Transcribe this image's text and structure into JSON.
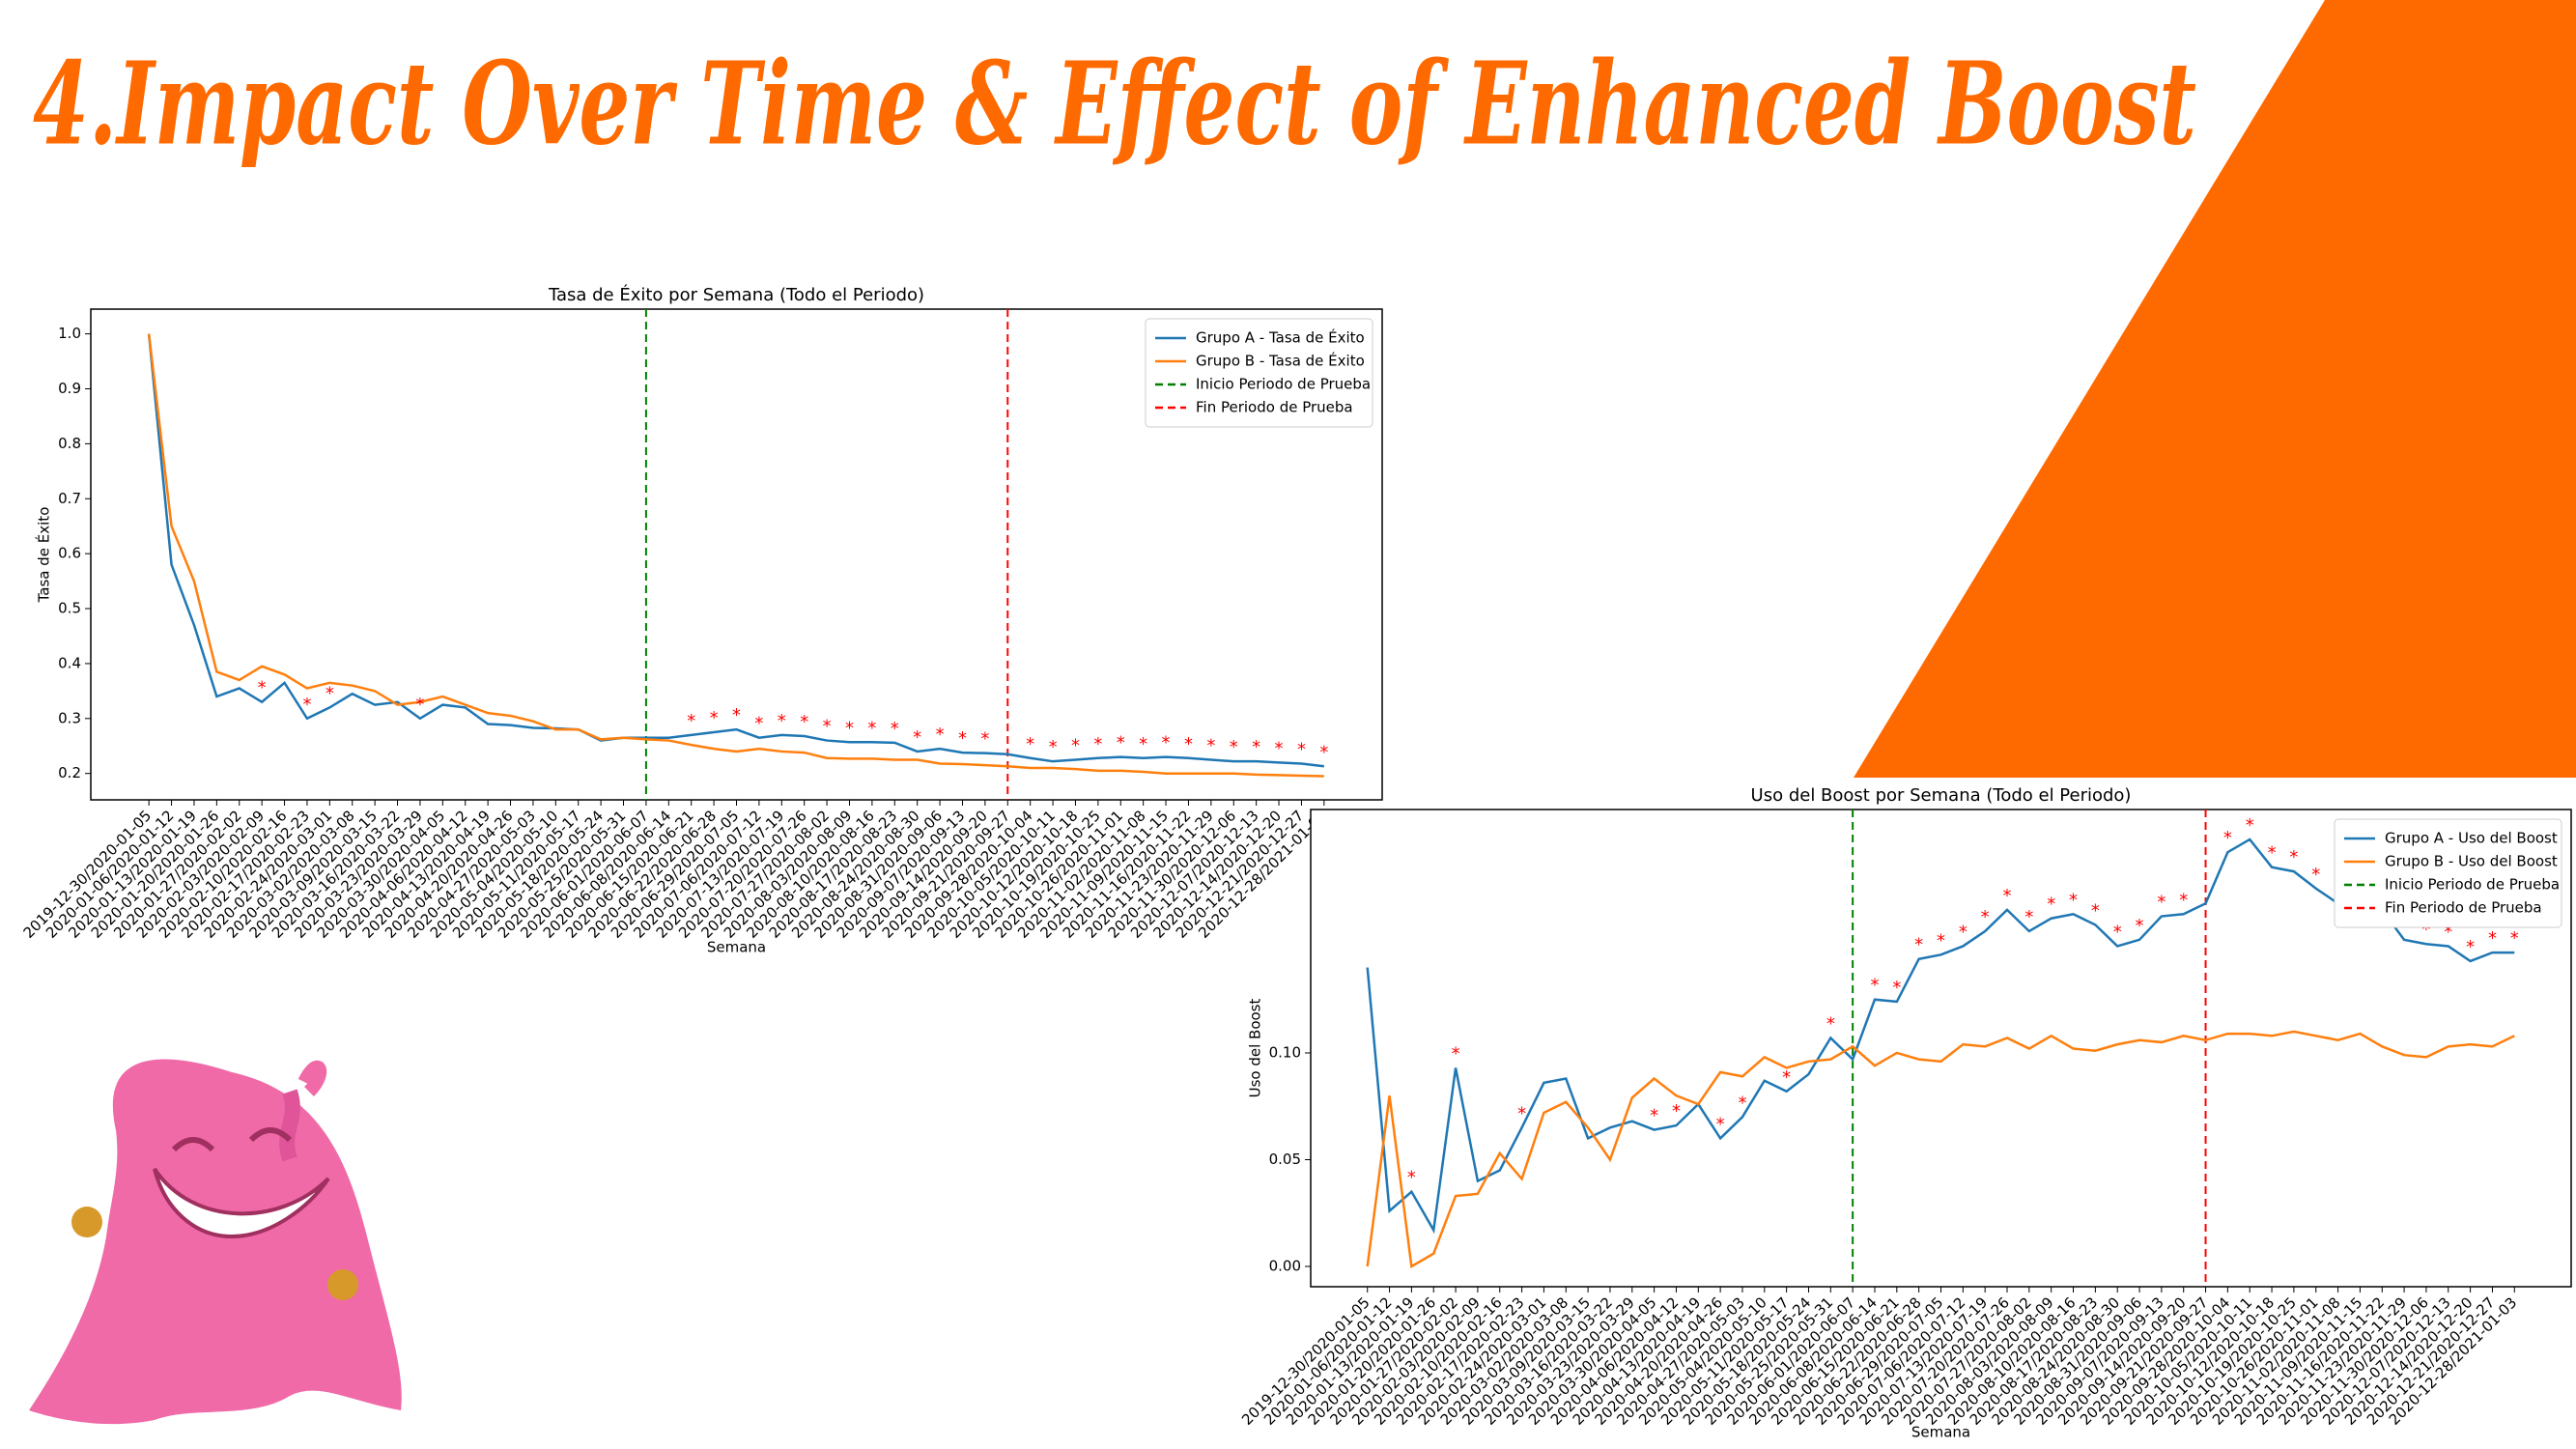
{
  "header": {
    "title": "4.Impact Over Time & Effect of Enhanced Boost"
  },
  "chart_data": [
    {
      "type": "line",
      "title": "Tasa de Éxito por Semana (Todo el Periodo)",
      "x_label": "Semana",
      "y_label": "Tasa de Éxito",
      "categories": [
        "2019-12-30/2020-01-05",
        "2020-01-06/2020-01-12",
        "2020-01-13/2020-01-19",
        "2020-01-20/2020-01-26",
        "2020-01-27/2020-02-02",
        "2020-02-03/2020-02-09",
        "2020-02-10/2020-02-16",
        "2020-02-17/2020-02-23",
        "2020-02-24/2020-03-01",
        "2020-03-02/2020-03-08",
        "2020-03-09/2020-03-15",
        "2020-03-16/2020-03-22",
        "2020-03-23/2020-03-29",
        "2020-03-30/2020-04-05",
        "2020-04-06/2020-04-12",
        "2020-04-13/2020-04-19",
        "2020-04-20/2020-04-26",
        "2020-04-27/2020-05-03",
        "2020-05-04/2020-05-10",
        "2020-05-11/2020-05-17",
        "2020-05-18/2020-05-24",
        "2020-05-25/2020-05-31",
        "2020-06-01/2020-06-07",
        "2020-06-08/2020-06-14",
        "2020-06-15/2020-06-21",
        "2020-06-22/2020-06-28",
        "2020-06-29/2020-07-05",
        "2020-07-06/2020-07-12",
        "2020-07-13/2020-07-19",
        "2020-07-20/2020-07-26",
        "2020-07-27/2020-08-02",
        "2020-08-03/2020-08-09",
        "2020-08-10/2020-08-16",
        "2020-08-17/2020-08-23",
        "2020-08-24/2020-08-30",
        "2020-08-31/2020-09-06",
        "2020-09-07/2020-09-13",
        "2020-09-14/2020-09-20",
        "2020-09-21/2020-09-27",
        "2020-09-28/2020-10-04",
        "2020-10-05/2020-10-11",
        "2020-10-12/2020-10-18",
        "2020-10-19/2020-10-25",
        "2020-10-26/2020-11-01",
        "2020-11-02/2020-11-08",
        "2020-11-09/2020-11-15",
        "2020-11-16/2020-11-22",
        "2020-11-23/2020-11-29",
        "2020-11-30/2020-12-06",
        "2020-12-07/2020-12-13",
        "2020-12-14/2020-12-20",
        "2020-12-21/2020-12-27",
        "2020-12-28/2021-01-03"
      ],
      "series": [
        {
          "name": "Grupo A - Tasa de Éxito",
          "color": "#1f77b4",
          "values": [
            1.0,
            0.58,
            0.47,
            0.34,
            0.355,
            0.33,
            0.365,
            0.3,
            0.32,
            0.345,
            0.325,
            0.33,
            0.3,
            0.325,
            0.32,
            0.29,
            0.288,
            0.283,
            0.282,
            0.28,
            0.26,
            0.265,
            0.265,
            0.265,
            0.27,
            0.275,
            0.28,
            0.265,
            0.27,
            0.268,
            0.26,
            0.257,
            0.257,
            0.256,
            0.24,
            0.245,
            0.238,
            0.237,
            0.235,
            0.228,
            0.222,
            0.225,
            0.228,
            0.23,
            0.228,
            0.23,
            0.228,
            0.225,
            0.222,
            0.222,
            0.22,
            0.218,
            0.213
          ]
        },
        {
          "name": "Grupo B - Tasa de Éxito",
          "color": "#ff7f0e",
          "values": [
            1.0,
            0.65,
            0.55,
            0.385,
            0.37,
            0.395,
            0.38,
            0.355,
            0.365,
            0.36,
            0.35,
            0.325,
            0.33,
            0.34,
            0.325,
            0.31,
            0.305,
            0.295,
            0.28,
            0.28,
            0.262,
            0.265,
            0.262,
            0.26,
            0.252,
            0.245,
            0.24,
            0.245,
            0.24,
            0.238,
            0.228,
            0.227,
            0.227,
            0.225,
            0.225,
            0.218,
            0.217,
            0.215,
            0.213,
            0.21,
            0.21,
            0.208,
            0.205,
            0.205,
            0.203,
            0.2,
            0.2,
            0.2,
            0.2,
            0.198,
            0.197,
            0.196,
            0.195
          ]
        }
      ],
      "markers": [
        {
          "name": "Inicio Periodo de Prueba",
          "color": "#008000",
          "x": 22
        },
        {
          "name": "Fin Periodo de Prueba",
          "color": "#ff0000",
          "x": 38
        }
      ],
      "significance_marker": "*",
      "significant_indices": [
        5,
        7,
        8,
        12,
        24,
        25,
        26,
        27,
        28,
        29,
        30,
        31,
        32,
        33,
        34,
        35,
        36,
        37,
        39,
        40,
        41,
        42,
        43,
        44,
        45,
        46,
        47,
        48,
        49,
        50,
        51,
        52
      ],
      "ylim": [
        0.152,
        1.045
      ],
      "yticks": [
        0.2,
        0.3,
        0.4,
        0.5,
        0.6,
        0.7,
        0.8,
        0.9,
        {
          "value": 1,
          "label": "1.0"
        }
      ],
      "legend": "upper right"
    },
    {
      "type": "line",
      "title": "Uso del Boost por Semana (Todo el Periodo)",
      "x_label": "Semana",
      "y_label": "Uso del Boost",
      "categories": [
        "2019-12-30/2020-01-05",
        "2020-01-06/2020-01-12",
        "2020-01-13/2020-01-19",
        "2020-01-20/2020-01-26",
        "2020-01-27/2020-02-02",
        "2020-02-03/2020-02-09",
        "2020-02-10/2020-02-16",
        "2020-02-17/2020-02-23",
        "2020-02-24/2020-03-01",
        "2020-03-02/2020-03-08",
        "2020-03-09/2020-03-15",
        "2020-03-16/2020-03-22",
        "2020-03-23/2020-03-29",
        "2020-03-30/2020-04-05",
        "2020-04-06/2020-04-12",
        "2020-04-13/2020-04-19",
        "2020-04-20/2020-04-26",
        "2020-04-27/2020-05-03",
        "2020-05-04/2020-05-10",
        "2020-05-11/2020-05-17",
        "2020-05-18/2020-05-24",
        "2020-05-25/2020-05-31",
        "2020-06-01/2020-06-07",
        "2020-06-08/2020-06-14",
        "2020-06-15/2020-06-21",
        "2020-06-22/2020-06-28",
        "2020-06-29/2020-07-05",
        "2020-07-06/2020-07-12",
        "2020-07-13/2020-07-19",
        "2020-07-20/2020-07-26",
        "2020-07-27/2020-08-02",
        "2020-08-03/2020-08-09",
        "2020-08-10/2020-08-16",
        "2020-08-17/2020-08-23",
        "2020-08-24/2020-08-30",
        "2020-08-31/2020-09-06",
        "2020-09-07/2020-09-13",
        "2020-09-14/2020-09-20",
        "2020-09-21/2020-09-27",
        "2020-09-28/2020-10-04",
        "2020-10-05/2020-10-11",
        "2020-10-12/2020-10-18",
        "2020-10-19/2020-10-25",
        "2020-10-26/2020-11-01",
        "2020-11-02/2020-11-08",
        "2020-11-09/2020-11-15",
        "2020-11-16/2020-11-22",
        "2020-11-23/2020-11-29",
        "2020-11-30/2020-12-06",
        "2020-12-07/2020-12-13",
        "2020-12-14/2020-12-20",
        "2020-12-21/2020-12-27",
        "2020-12-28/2021-01-03"
      ],
      "series": [
        {
          "name": "Grupo A - Uso del Boost",
          "color": "#1f77b4",
          "values": [
            0.14,
            0.026,
            0.035,
            0.017,
            0.093,
            0.04,
            0.045,
            0.065,
            0.086,
            0.088,
            0.06,
            0.065,
            0.068,
            0.064,
            0.066,
            0.076,
            0.06,
            0.07,
            0.087,
            0.082,
            0.09,
            0.107,
            0.097,
            0.125,
            0.124,
            0.144,
            0.146,
            0.15,
            0.157,
            0.167,
            0.157,
            0.163,
            0.165,
            0.16,
            0.15,
            0.153,
            0.164,
            0.165,
            0.17,
            0.194,
            0.2,
            0.187,
            0.185,
            0.177,
            0.17,
            0.168,
            0.167,
            0.153,
            0.151,
            0.15,
            0.143,
            0.147,
            0.147
          ]
        },
        {
          "name": "Grupo B - Uso del Boost",
          "color": "#ff7f0e",
          "values": [
            0.0,
            0.08,
            0.0,
            0.006,
            0.033,
            0.034,
            0.053,
            0.041,
            0.072,
            0.077,
            0.065,
            0.05,
            0.079,
            0.088,
            0.08,
            0.076,
            0.091,
            0.089,
            0.098,
            0.093,
            0.096,
            0.097,
            0.103,
            0.094,
            0.1,
            0.097,
            0.096,
            0.104,
            0.103,
            0.107,
            0.102,
            0.108,
            0.102,
            0.101,
            0.104,
            0.106,
            0.105,
            0.108,
            0.106,
            0.109,
            0.109,
            0.108,
            0.11,
            0.108,
            0.106,
            0.109,
            0.103,
            0.099,
            0.098,
            0.103,
            0.104,
            0.103,
            0.108
          ]
        }
      ],
      "markers": [
        {
          "name": "Inicio Periodo de Prueba",
          "color": "#008000",
          "x": 22
        },
        {
          "name": "Fin Periodo de Prueba",
          "color": "#ff0000",
          "x": 38
        }
      ],
      "significance_marker": "*",
      "significant_indices": [
        2,
        4,
        7,
        13,
        14,
        16,
        17,
        19,
        21,
        23,
        24,
        25,
        26,
        27,
        28,
        29,
        30,
        31,
        32,
        33,
        34,
        35,
        36,
        37,
        39,
        40,
        41,
        42,
        43,
        44,
        45,
        46,
        47,
        48,
        49,
        50,
        51,
        52
      ],
      "ylim": [
        -0.0095,
        0.214
      ],
      "yticks": [
        {
          "value": 0,
          "label": "0.00"
        },
        {
          "value": 0.05,
          "label": "0.05"
        },
        {
          "value": 0.1,
          "label": "0.10"
        }
      ],
      "legend": "upper right"
    }
  ]
}
